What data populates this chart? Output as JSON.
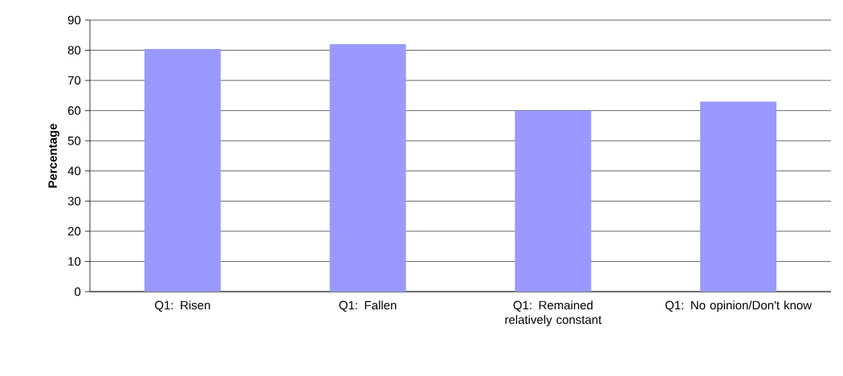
{
  "chart_data": {
    "type": "bar",
    "ylabel": "Percentage",
    "categories": [
      "Q1: Risen",
      "Q1: Fallen",
      "Q1: Remained relatively constant",
      "Q1: No opinion/Don't know"
    ],
    "values": [
      80.4,
      82,
      60,
      63
    ],
    "color": "#9999ff",
    "ylim": [
      0,
      90
    ],
    "yticks": [
      0,
      10,
      20,
      30,
      40,
      50,
      60,
      70,
      80,
      90
    ],
    "grid": "y"
  }
}
